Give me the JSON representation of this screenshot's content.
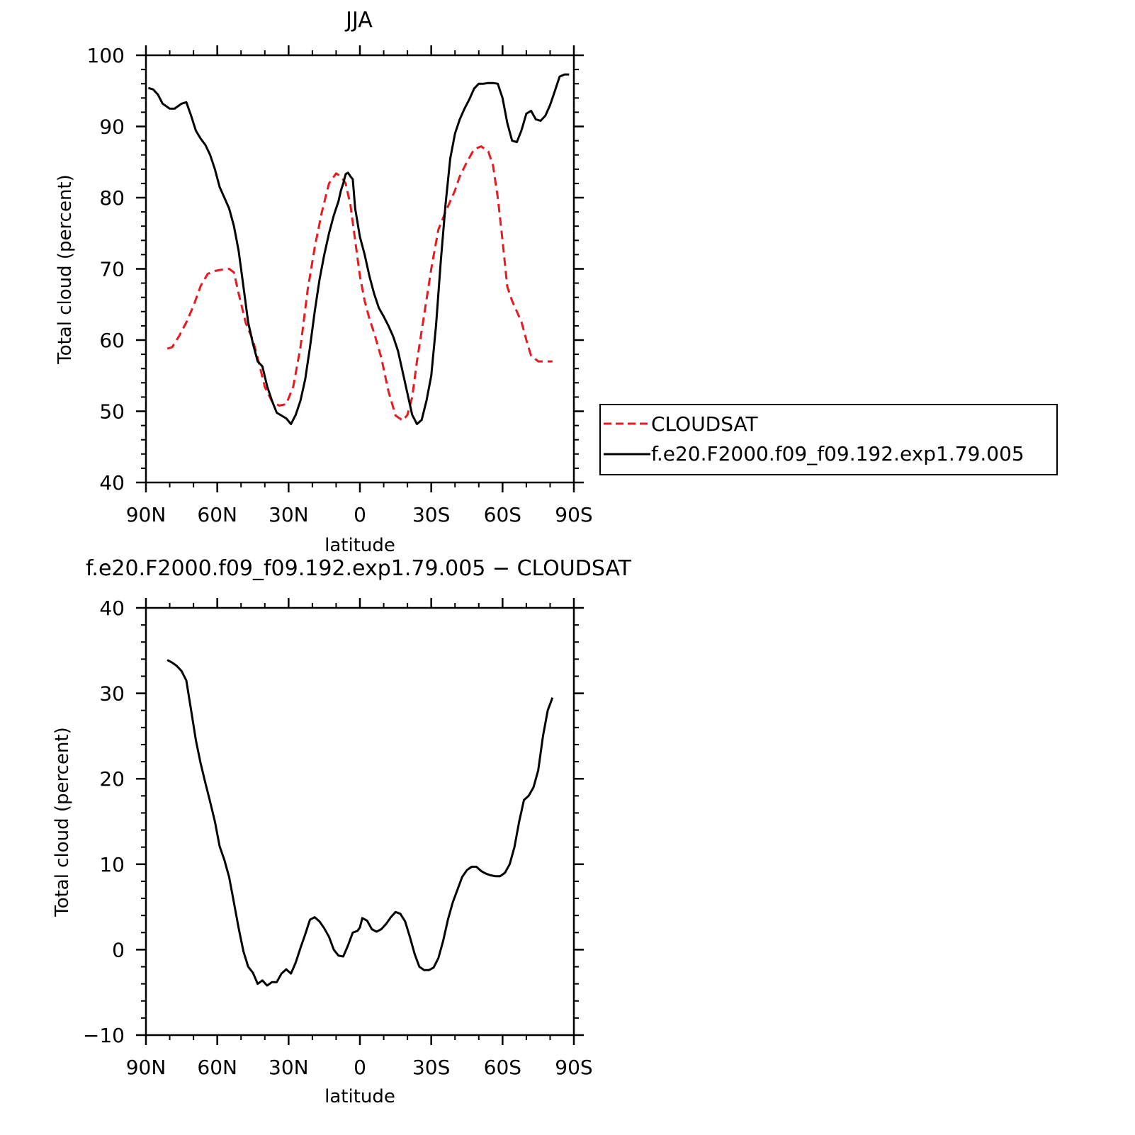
{
  "chart_data": [
    {
      "type": "line",
      "title": "JJA",
      "xlabel": "latitude",
      "ylabel": "Total cloud (percent)",
      "xlim": [
        90,
        -90
      ],
      "ylim": [
        40,
        100
      ],
      "x_ticks": [
        {
          "value": 90,
          "label": "90N"
        },
        {
          "value": 60,
          "label": "60N"
        },
        {
          "value": 30,
          "label": "30N"
        },
        {
          "value": 0,
          "label": "0"
        },
        {
          "value": -30,
          "label": "30S"
        },
        {
          "value": -60,
          "label": "60S"
        },
        {
          "value": -90,
          "label": "90S"
        }
      ],
      "y_ticks": [
        {
          "value": 100,
          "label": "100"
        },
        {
          "value": 90,
          "label": "90"
        },
        {
          "value": 80,
          "label": "80"
        },
        {
          "value": 70,
          "label": "70"
        },
        {
          "value": 60,
          "label": "60"
        },
        {
          "value": 50,
          "label": "50"
        },
        {
          "value": 40,
          "label": "40"
        }
      ],
      "legend": {
        "position": "right"
      },
      "series": [
        {
          "name": "CLOUDSAT",
          "color": "#e8191f",
          "style": "dashed",
          "x": [
            81,
            79,
            76,
            73,
            70,
            67,
            64,
            61,
            58,
            55,
            53,
            51,
            48,
            45,
            43,
            40,
            37,
            34,
            31,
            28,
            25,
            22,
            19,
            16,
            13,
            10,
            8,
            6,
            5,
            4,
            2,
            0,
            -2,
            -4,
            -6,
            -9,
            -12,
            -15,
            -18,
            -20,
            -22,
            -24,
            -27,
            -30,
            -33,
            -36,
            -38,
            -40,
            -42,
            -45,
            -48,
            -51,
            -54,
            -56,
            -58,
            -60,
            -62,
            -64,
            -66,
            -68,
            -70,
            -72,
            -75,
            -78,
            -81
          ],
          "y": [
            58.8,
            59.0,
            60.6,
            62.5,
            64.8,
            67.6,
            69.3,
            69.7,
            69.9,
            70.0,
            69.5,
            66.5,
            62.4,
            60.0,
            57.5,
            53.4,
            51.4,
            50.8,
            51.0,
            53.5,
            59.0,
            67.0,
            73.0,
            78.0,
            82.0,
            83.4,
            83.0,
            82.0,
            80.5,
            79.0,
            74.0,
            69.0,
            65.5,
            63.0,
            61.0,
            57.5,
            52.8,
            49.4,
            48.7,
            49.5,
            52.0,
            57.0,
            63.5,
            70.0,
            75.5,
            78.0,
            79.5,
            81.0,
            83.0,
            85.0,
            86.8,
            87.2,
            86.5,
            84.5,
            80.0,
            74.0,
            67.5,
            65.5,
            64.0,
            62.5,
            60.0,
            57.8,
            57.0,
            57.0,
            57.0
          ]
        },
        {
          "name": "f.e20.F2000.f09_f09.192.exp1.79.005",
          "color": "#000000",
          "style": "solid",
          "x": [
            89,
            87,
            85,
            83,
            80,
            78,
            75,
            73,
            71,
            69,
            67,
            65,
            63,
            61,
            59,
            57,
            55,
            53,
            51,
            49,
            47,
            45,
            43,
            41,
            39,
            37,
            35,
            33,
            31,
            29,
            27,
            25,
            23,
            21,
            19,
            17,
            15,
            13,
            11,
            9,
            8,
            7,
            6,
            5,
            4,
            3,
            2,
            0,
            -2,
            -4,
            -6,
            -8,
            -10,
            -12,
            -14,
            -16,
            -18,
            -20,
            -22,
            -24,
            -26,
            -28,
            -30,
            -32,
            -34,
            -36,
            -38,
            -40,
            -42,
            -44,
            -46,
            -48,
            -50,
            -52,
            -54,
            -56,
            -58,
            -60,
            -62,
            -64,
            -66,
            -68,
            -70,
            -72,
            -74,
            -76,
            -78,
            -80,
            -82,
            -84,
            -86,
            -88
          ],
          "y": [
            95.4,
            95.2,
            94.5,
            93.2,
            92.5,
            92.5,
            93.2,
            93.4,
            91.5,
            89.4,
            88.3,
            87.4,
            86.0,
            84.0,
            81.5,
            80.0,
            78.5,
            76.0,
            72.5,
            67.5,
            62.5,
            59.5,
            57.0,
            56.3,
            53.5,
            51.5,
            49.8,
            49.4,
            49.0,
            48.2,
            49.5,
            51.5,
            54.5,
            59.0,
            64.0,
            68.5,
            72.0,
            75.0,
            77.5,
            79.5,
            81.0,
            82.0,
            83.3,
            83.5,
            83.0,
            82.6,
            78.5,
            74.5,
            72.0,
            69.0,
            66.5,
            64.5,
            63.3,
            62.0,
            60.5,
            58.5,
            55.5,
            52.5,
            49.5,
            48.2,
            48.8,
            51.5,
            55.0,
            62.0,
            71.0,
            79.0,
            85.5,
            89.0,
            91.0,
            92.5,
            93.8,
            95.3,
            96.0,
            96.0,
            96.1,
            96.1,
            96.0,
            94.0,
            90.5,
            88.0,
            87.8,
            89.5,
            91.8,
            92.2,
            91.0,
            90.8,
            91.5,
            93.0,
            95.0,
            97.0,
            97.3,
            97.3
          ]
        }
      ]
    },
    {
      "type": "line",
      "title": "f.e20.F2000.f09_f09.192.exp1.79.005 − CLOUDSAT",
      "xlabel": "latitude",
      "ylabel": "Total cloud (percent)",
      "xlim": [
        90,
        -90
      ],
      "ylim": [
        -10,
        40
      ],
      "x_ticks": [
        {
          "value": 90,
          "label": "90N"
        },
        {
          "value": 60,
          "label": "60N"
        },
        {
          "value": 30,
          "label": "30N"
        },
        {
          "value": 0,
          "label": "0"
        },
        {
          "value": -30,
          "label": "30S"
        },
        {
          "value": -60,
          "label": "60S"
        },
        {
          "value": -90,
          "label": "90S"
        }
      ],
      "y_ticks": [
        {
          "value": 40,
          "label": "40"
        },
        {
          "value": 30,
          "label": "30"
        },
        {
          "value": 20,
          "label": "20"
        },
        {
          "value": 10,
          "label": "10"
        },
        {
          "value": 0,
          "label": "0"
        },
        {
          "value": -10,
          "label": "−10"
        }
      ],
      "series": [
        {
          "color": "#000000",
          "style": "solid",
          "x": [
            81,
            79,
            77,
            75,
            73,
            71,
            69,
            67,
            65,
            63,
            61,
            59,
            57,
            55,
            53,
            51,
            49,
            47,
            45,
            43,
            41,
            39,
            37,
            35,
            33,
            31,
            29,
            27,
            25,
            23,
            21,
            19,
            17,
            15,
            13,
            11,
            9,
            7,
            5,
            3,
            1,
            0,
            -1,
            -3,
            -5,
            -7,
            -9,
            -11,
            -13,
            -15,
            -17,
            -19,
            -21,
            -23,
            -25,
            -27,
            -29,
            -31,
            -33,
            -35,
            -37,
            -39,
            -41,
            -43,
            -45,
            -47,
            -49,
            -51,
            -53,
            -55,
            -57,
            -59,
            -61,
            -63,
            -65,
            -67,
            -69,
            -71,
            -73,
            -75,
            -77,
            -79,
            -81
          ],
          "y": [
            33.9,
            33.6,
            33.2,
            32.6,
            31.5,
            28.0,
            24.5,
            21.8,
            19.5,
            17.3,
            15.0,
            12.1,
            10.5,
            8.5,
            5.5,
            2.5,
            -0.2,
            -2.0,
            -2.7,
            -4.0,
            -3.6,
            -4.2,
            -3.8,
            -3.8,
            -2.8,
            -2.3,
            -2.8,
            -1.5,
            0.2,
            1.8,
            3.5,
            3.8,
            3.3,
            2.5,
            1.5,
            0.0,
            -0.7,
            -0.8,
            0.5,
            2.0,
            2.2,
            2.6,
            3.7,
            3.4,
            2.4,
            2.1,
            2.4,
            3.0,
            3.8,
            4.4,
            4.2,
            3.3,
            1.5,
            -0.5,
            -2.0,
            -2.4,
            -2.4,
            -2.1,
            -1.0,
            1.0,
            3.5,
            5.5,
            7.0,
            8.5,
            9.3,
            9.7,
            9.7,
            9.2,
            8.9,
            8.7,
            8.6,
            8.6,
            9.0,
            10.0,
            12.0,
            15.0,
            17.5,
            18.0,
            19.0,
            21.0,
            25.0,
            28.0,
            29.5
          ]
        }
      ]
    }
  ]
}
